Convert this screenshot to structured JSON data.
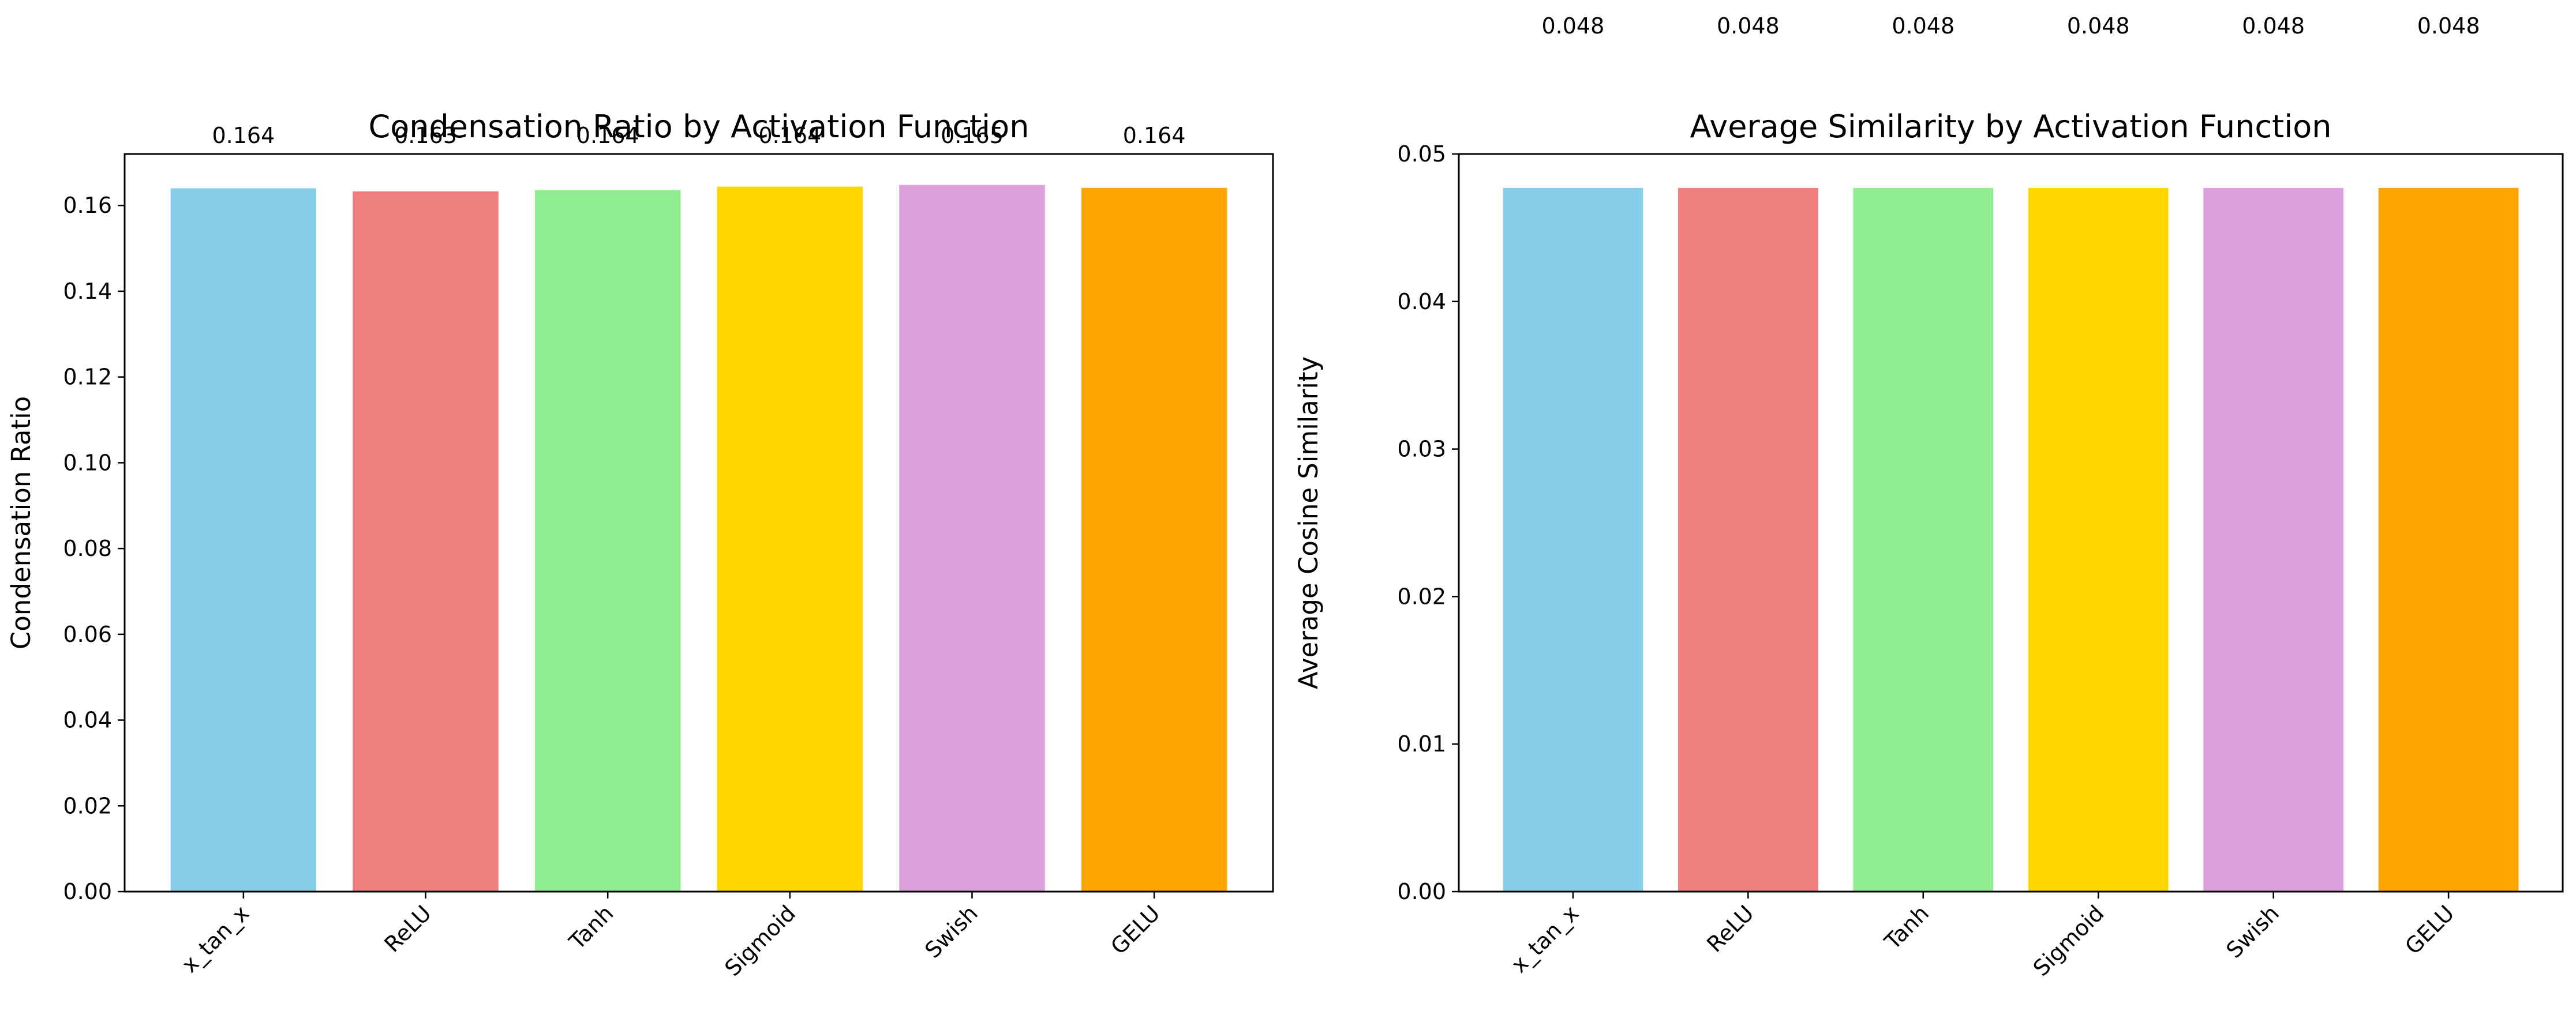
{
  "chart_data": [
    {
      "type": "bar",
      "title": "Condensation Ratio by Activation Function",
      "xlabel": "",
      "ylabel": "Condensation Ratio",
      "categories": [
        "x_tan_x",
        "ReLU",
        "Tanh",
        "Sigmoid",
        "Swish",
        "GELU"
      ],
      "values": [
        0.164,
        0.1633,
        0.1636,
        0.1644,
        0.1648,
        0.1641
      ],
      "value_labels": [
        "0.164",
        "0.163",
        "0.164",
        "0.164",
        "0.165",
        "0.164"
      ],
      "colors": [
        "#87CEEB",
        "#F08080",
        "#90EE90",
        "#FFD700",
        "#DDA0DD",
        "#FFA500"
      ],
      "ylim": [
        0,
        0.172
      ],
      "yticks": [
        0.0,
        0.02,
        0.04,
        0.06,
        0.08,
        0.1,
        0.12,
        0.14,
        0.16
      ],
      "ytick_labels": [
        "0.00",
        "0.02",
        "0.04",
        "0.06",
        "0.08",
        "0.10",
        "0.12",
        "0.14",
        "0.16"
      ],
      "grid": false,
      "legend": "none"
    },
    {
      "type": "bar",
      "title": "Average Similarity by Activation Function",
      "xlabel": "",
      "ylabel": "Average Cosine Similarity",
      "categories": [
        "x_tan_x",
        "ReLU",
        "Tanh",
        "Sigmoid",
        "Swish",
        "GELU"
      ],
      "values": [
        0.0477,
        0.0477,
        0.0477,
        0.0477,
        0.0477,
        0.0477
      ],
      "value_labels": [
        "0.048",
        "0.048",
        "0.048",
        "0.048",
        "0.048",
        "0.048"
      ],
      "colors": [
        "#87CEEB",
        "#F08080",
        "#90EE90",
        "#FFD700",
        "#DDA0DD",
        "#FFA500"
      ],
      "ylim": [
        0,
        0.05
      ],
      "yticks": [
        0.0,
        0.01,
        0.02,
        0.03,
        0.04,
        0.05
      ],
      "ytick_labels": [
        "0.00",
        "0.01",
        "0.02",
        "0.03",
        "0.04",
        "0.05"
      ],
      "grid": false,
      "legend": "none"
    }
  ]
}
